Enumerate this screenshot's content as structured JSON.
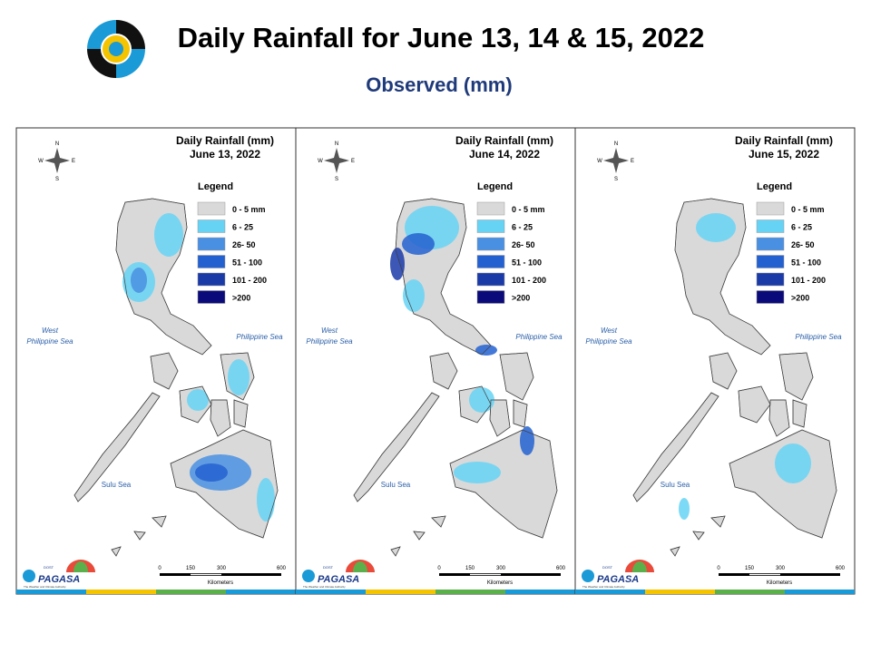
{
  "header": {
    "title": "Daily Rainfall for June 13, 14 & 15, 2022",
    "subtitle": "Observed (mm)"
  },
  "panels": [
    {
      "title": "Daily Rainfall (mm)",
      "date": "June 13, 2022"
    },
    {
      "title": "Daily Rainfall (mm)",
      "date": "June 14, 2022"
    },
    {
      "title": "Daily Rainfall (mm)",
      "date": "June 15, 2022"
    }
  ],
  "legend": {
    "title": "Legend",
    "items": [
      {
        "label": "0 - 5 mm",
        "color": "#d9d9d9"
      },
      {
        "label": "6 - 25",
        "color": "#66d3f5"
      },
      {
        "label": "26- 50",
        "color": "#4a90e2"
      },
      {
        "label": "51 - 100",
        "color": "#2461d0"
      },
      {
        "label": "101 - 200",
        "color": "#1a3aa8"
      },
      {
        "label": ">200",
        "color": "#0a0a7a"
      }
    ]
  },
  "map_labels": {
    "west_sea": [
      "West",
      "Philippine Sea"
    ],
    "east_sea": "Philippine Sea",
    "sulu_sea": "Sulu Sea"
  },
  "compass": {
    "n": "N",
    "e": "E",
    "s": "S",
    "w": "W"
  },
  "scale": {
    "ticks": [
      "0",
      "150",
      "300",
      "600"
    ],
    "unit": "Kilometers"
  },
  "logo": {
    "dost": "DOST",
    "name": "PAGASA",
    "tagline": "The Weather and Climate Authority"
  }
}
